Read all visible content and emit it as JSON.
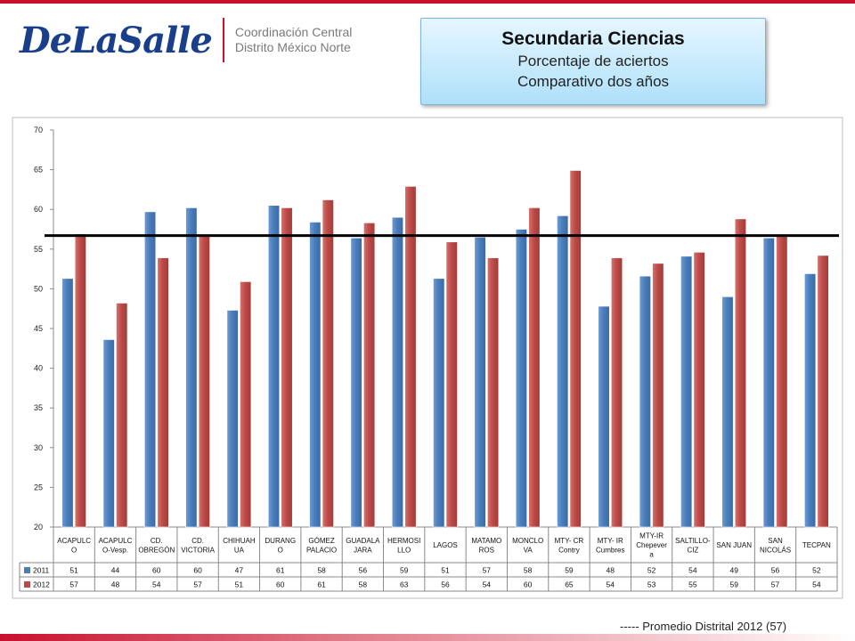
{
  "header": {
    "logo_text": "DeLaSalle",
    "org_line1": "Coordinación Central",
    "org_line2": "Distrito México Norte"
  },
  "title_box": {
    "title": "Secundaria Ciencias",
    "subtitle1": "Porcentaje de aciertos",
    "subtitle2": "Comparativo dos años"
  },
  "footer": {
    "average_note": "----- Promedio Distrital 2012   (57)"
  },
  "colors": {
    "series_2011": "#4a7ebb",
    "series_2012": "#be4b48",
    "average_line": "#000000",
    "brand_red": "#c8102e",
    "brand_blue": "#1a3f8a"
  },
  "chart_data": {
    "type": "bar",
    "categories": [
      "ACAPULCO",
      "ACAPULCO-Vesp.",
      "CD. OBREGÓN",
      "CD. VICTORIA",
      "CHIHUAHUA",
      "DURANGO",
      "GÓMEZ PALACIO",
      "GUADALAJARA",
      "HERMOSILLO",
      "LAGOS",
      "MATAMOROS",
      "MONCLOVA",
      "MTY- CR Contry",
      "MTY- IR Cumbres",
      "MTY-IR Chepevera",
      "SALTILLO-CIZ",
      "SAN JUAN",
      "SAN NICOLÁS",
      "TECPAN"
    ],
    "category_label_lines": [
      [
        "ACAPULC",
        "O"
      ],
      [
        "ACAPULC",
        "O-Vesp."
      ],
      [
        "CD.",
        "OBREGÓN"
      ],
      [
        "CD.",
        "VICTORIA"
      ],
      [
        "CHIHUAH",
        "UA"
      ],
      [
        "DURANG",
        "O"
      ],
      [
        "GÓMEZ",
        "PALACIO"
      ],
      [
        "GUADALA",
        "JARA"
      ],
      [
        "HERMOSI",
        "LLO"
      ],
      [
        "LAGOS"
      ],
      [
        "MATAMO",
        "ROS"
      ],
      [
        "MONCLO",
        "VA"
      ],
      [
        "MTY- CR",
        "Contry"
      ],
      [
        "MTY- IR",
        "Cumbres"
      ],
      [
        "MTY-IR",
        "Chepever",
        "a"
      ],
      [
        "SALTILLO-",
        "CIZ"
      ],
      [
        "SAN JUAN"
      ],
      [
        "SAN",
        "NICOLÁS"
      ],
      [
        "TECPAN"
      ]
    ],
    "series": [
      {
        "name": "2011",
        "values": [
          51.3,
          43.6,
          59.7,
          60.2,
          47.3,
          60.5,
          58.4,
          56.4,
          59.0,
          51.3,
          56.5,
          57.5,
          59.2,
          47.8,
          51.6,
          54.1,
          49.0,
          56.4,
          51.9
        ]
      },
      {
        "name": "2012",
        "values": [
          56.9,
          48.2,
          53.9,
          56.8,
          50.9,
          60.2,
          61.2,
          58.3,
          62.9,
          55.9,
          53.9,
          60.2,
          64.9,
          53.9,
          53.2,
          54.6,
          58.8,
          56.8,
          54.2
        ]
      }
    ],
    "table_values": {
      "2011": [
        "51",
        "44",
        "60",
        "60",
        "47",
        "61",
        "58",
        "56",
        "59",
        "51",
        "57",
        "58",
        "59",
        "48",
        "52",
        "54",
        "49",
        "56",
        "52"
      ],
      "2012": [
        "57",
        "48",
        "54",
        "57",
        "51",
        "60",
        "61",
        "58",
        "63",
        "56",
        "54",
        "60",
        "65",
        "54",
        "53",
        "55",
        "59",
        "57",
        "54"
      ]
    },
    "y_ticks": [
      "70",
      "65",
      "60",
      "55",
      "50",
      "45",
      "40",
      "35",
      "30",
      "25",
      "20"
    ],
    "ylim": [
      20,
      70
    ],
    "reference_line": {
      "value": 56.7
    },
    "grid": false,
    "legend_placement": "data-table"
  }
}
